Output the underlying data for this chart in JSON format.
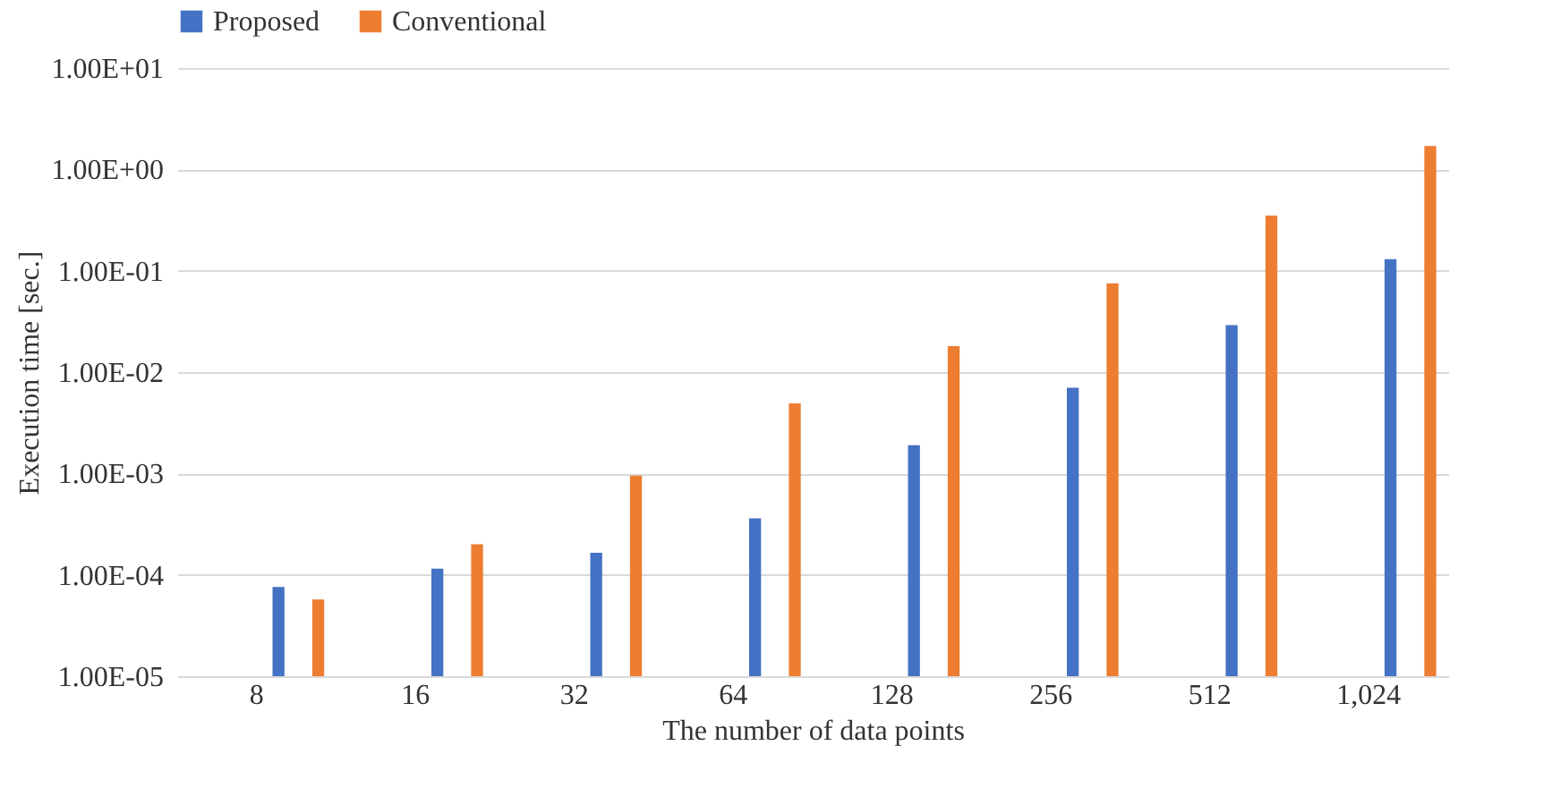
{
  "chart_data": {
    "type": "bar",
    "xlabel": "The number of data points",
    "ylabel": "Execution time [sec.]",
    "categories": [
      "8",
      "16",
      "32",
      "64",
      "128",
      "256",
      "512",
      "1,024"
    ],
    "series": [
      {
        "name": "Proposed",
        "color": "#4472c4",
        "values": [
          7.6e-05,
          0.000115,
          0.000165,
          0.00036,
          0.0019,
          0.007,
          0.029,
          0.13
        ]
      },
      {
        "name": "Conventional",
        "color": "#ed7d31",
        "values": [
          5.7e-05,
          0.0002,
          0.00095,
          0.0049,
          0.018,
          0.075,
          0.35,
          1.7
        ]
      }
    ],
    "log": "y",
    "ylim": [
      1e-05,
      10
    ],
    "yticks": [
      {
        "value": 1e-05,
        "label": "1.00E-05"
      },
      {
        "value": 0.0001,
        "label": "1.00E-04"
      },
      {
        "value": 0.001,
        "label": "1.00E-03"
      },
      {
        "value": 0.01,
        "label": "1.00E-02"
      },
      {
        "value": 0.1,
        "label": "1.00E-01"
      },
      {
        "value": 1,
        "label": "1.00E+00"
      },
      {
        "value": 10,
        "label": "1.00E+01"
      }
    ],
    "grid": "y",
    "legend": "top"
  }
}
